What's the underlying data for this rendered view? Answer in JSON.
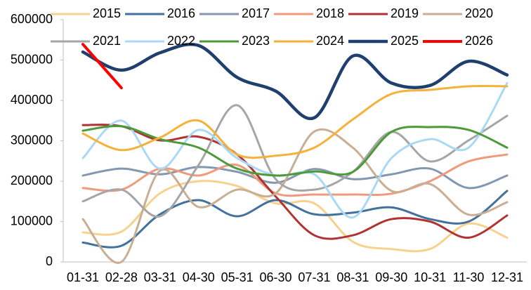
{
  "chart_data": {
    "type": "line",
    "categories": [
      "01-31",
      "02-28",
      "03-31",
      "04-30",
      "05-31",
      "06-30",
      "07-31",
      "08-31",
      "09-30",
      "10-31",
      "11-30",
      "12-31"
    ],
    "ylim": [
      0,
      600000
    ],
    "yticks": [
      0,
      100000,
      200000,
      300000,
      400000,
      500000,
      600000
    ],
    "series": [
      {
        "name": "2015",
        "color": "#f7d28e",
        "values": [
          73000,
          75000,
          170000,
          200000,
          188000,
          145000,
          145000,
          50000,
          32000,
          32000,
          95000,
          60000
        ]
      },
      {
        "name": "2016",
        "color": "#41719c",
        "values": [
          48000,
          40000,
          118000,
          153000,
          113000,
          153000,
          118000,
          122000,
          135000,
          106000,
          100000,
          176000
        ]
      },
      {
        "name": "2017",
        "color": "#8497b0",
        "values": [
          214000,
          231000,
          217000,
          235000,
          223000,
          196000,
          230000,
          205000,
          217000,
          231000,
          183000,
          214000
        ]
      },
      {
        "name": "2018",
        "color": "#f09a7c",
        "values": [
          183000,
          179000,
          231000,
          214000,
          240000,
          170000,
          167000,
          167000,
          169000,
          200000,
          249000,
          266000
        ]
      },
      {
        "name": "2019",
        "color": "#b03333",
        "values": [
          339000,
          336000,
          301000,
          310000,
          266000,
          162000,
          66000,
          66000,
          106000,
          100000,
          60000,
          115000
        ]
      },
      {
        "name": "2020",
        "color": "#c9ae94",
        "values": [
          106000,
          0,
          226000,
          136000,
          179000,
          170000,
          323000,
          283000,
          176000,
          193000,
          117000,
          148000
        ]
      },
      {
        "name": "2021",
        "color": "#a6a6a6",
        "values": [
          150000,
          179000,
          113000,
          240000,
          388000,
          205000,
          179000,
          223000,
          322000,
          249000,
          301000,
          362000
        ]
      },
      {
        "name": "2022",
        "color": "#a9d9f5",
        "values": [
          257000,
          350000,
          231000,
          327000,
          257000,
          214000,
          217000,
          110000,
          257000,
          304000,
          283000,
          443000
        ]
      },
      {
        "name": "2023",
        "color": "#4c9a3a",
        "values": [
          325000,
          336000,
          304000,
          283000,
          231000,
          214000,
          224000,
          223000,
          322000,
          334000,
          327000,
          283000
        ]
      },
      {
        "name": "2024",
        "color": "#f5b23a",
        "values": [
          318000,
          277000,
          308000,
          350000,
          266000,
          263000,
          283000,
          353000,
          416000,
          426000,
          435000,
          435000
        ]
      },
      {
        "name": "2025",
        "color": "#1f3f6e",
        "line_width": 4.5,
        "values": [
          520000,
          475000,
          518000,
          536000,
          457000,
          423000,
          357000,
          510000,
          443000,
          437000,
          497000,
          463000
        ]
      },
      {
        "name": "2026",
        "color": "#ff0000",
        "line_width": 4,
        "values": [
          539000,
          431000,
          null,
          null,
          null,
          null,
          null,
          null,
          null,
          null,
          null,
          null
        ]
      }
    ]
  }
}
